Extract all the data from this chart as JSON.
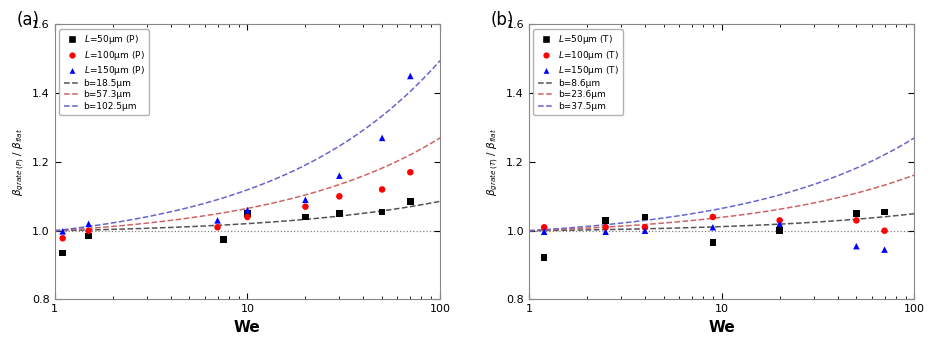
{
  "panel_a": {
    "label": "(a)",
    "ylabel": "$\\beta_{grate\\,(P)}$ / $\\beta_{flat}$",
    "scatter": {
      "black_sq": {
        "We": [
          1.1,
          1.5,
          7.5,
          10,
          20,
          30,
          50,
          70
        ],
        "ratio": [
          0.935,
          0.985,
          0.975,
          1.05,
          1.04,
          1.05,
          1.055,
          1.085
        ]
      },
      "red_circ": {
        "We": [
          1.1,
          1.5,
          7,
          10,
          20,
          30,
          50,
          70
        ],
        "ratio": [
          0.978,
          1.0,
          1.01,
          1.04,
          1.07,
          1.1,
          1.12,
          1.17
        ]
      },
      "blue_tri": {
        "We": [
          1.1,
          1.5,
          7,
          10,
          20,
          30,
          50,
          70
        ],
        "ratio": [
          0.998,
          1.02,
          1.03,
          1.06,
          1.09,
          1.16,
          1.27,
          1.45
        ]
      }
    },
    "curves": {
      "b1": {
        "label": "b=18.5μm",
        "color": "#555555",
        "a": 0.0095
      },
      "b2": {
        "label": "b=57.3μm",
        "color": "#cc6666",
        "a": 0.03
      },
      "b3": {
        "label": "b=102.5μm",
        "color": "#6666cc",
        "a": 0.055
      }
    },
    "legend_markers": [
      {
        "label": "$\\mathit{L}$=50μm (P)",
        "color": "black",
        "marker": "s"
      },
      {
        "label": "$\\mathit{L}$=100μm (P)",
        "color": "red",
        "marker": "o"
      },
      {
        "label": "$\\mathit{L}$=150μm (P)",
        "color": "blue",
        "marker": "^"
      }
    ]
  },
  "panel_b": {
    "label": "(b)",
    "ylabel": "$\\beta_{grate\\,(T)}$ / $\\beta_{flat}$",
    "scatter": {
      "black_sq": {
        "We": [
          1.2,
          2.5,
          4.0,
          9.0,
          20,
          50,
          70
        ],
        "ratio": [
          0.922,
          1.03,
          1.04,
          0.965,
          1.0,
          1.05,
          1.055
        ]
      },
      "red_circ": {
        "We": [
          1.2,
          2.5,
          4.0,
          9.0,
          20,
          50,
          70
        ],
        "ratio": [
          1.01,
          1.01,
          1.01,
          1.04,
          1.03,
          1.03,
          1.0
        ]
      },
      "blue_tri": {
        "We": [
          1.2,
          2.5,
          4.0,
          9.0,
          20,
          50,
          70
        ],
        "ratio": [
          0.997,
          0.997,
          1.0,
          1.01,
          1.02,
          0.955,
          0.945
        ]
      }
    },
    "curves": {
      "b1": {
        "label": "b=8.6μm",
        "color": "#555555",
        "a": 0.0055
      },
      "b2": {
        "label": "b=23.6μm",
        "color": "#cc6666",
        "a": 0.018
      },
      "b3": {
        "label": "b=37.5μm",
        "color": "#6666cc",
        "a": 0.03
      }
    },
    "legend_markers": [
      {
        "label": "$\\mathit{L}$=50μm (T)",
        "color": "black",
        "marker": "s"
      },
      {
        "label": "$\\mathit{L}$=100μm (T)",
        "color": "red",
        "marker": "o"
      },
      {
        "label": "$\\mathit{L}$=150μm (T)",
        "color": "blue",
        "marker": "^"
      }
    ]
  },
  "xlim": [
    1,
    100
  ],
  "ylim": [
    0.8,
    1.6
  ],
  "yticks": [
    0.8,
    1.0,
    1.2,
    1.4,
    1.6
  ],
  "xlabel": "We"
}
